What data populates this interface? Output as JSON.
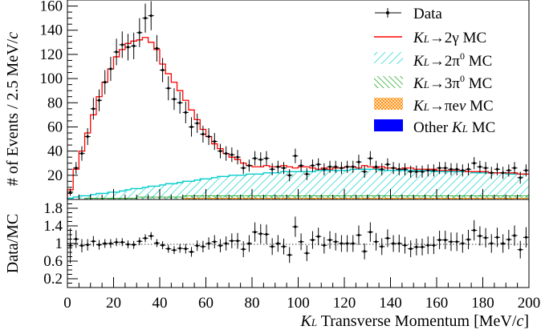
{
  "chart_data": {
    "type": "histogram",
    "xlabel": "KL Transverse Momentum [MeV/c]",
    "xlabel_parts": {
      "k": "K",
      "sub": "L",
      "rest": " Transverse Momentum [MeV/",
      "c": "c",
      "close": "]"
    },
    "ylabel_top": "# of Events / 2.5 MeV/c",
    "ylabel_top_parts": {
      "main": "# of Events / 2.5 MeV/",
      "c": "c"
    },
    "ylabel_bottom": "Data/MC",
    "xlim": [
      0,
      200
    ],
    "ylim_top": [
      0,
      165
    ],
    "ylim_bottom": [
      0,
      2.0
    ],
    "xticks": [
      "0",
      "20",
      "40",
      "60",
      "80",
      "100",
      "120",
      "140",
      "160",
      "180",
      "200"
    ],
    "yticks_top": [
      "20",
      "40",
      "60",
      "80",
      "100",
      "120",
      "140",
      "160"
    ],
    "yticks_bottom": [
      "0.2",
      "0.6",
      "1",
      "1.4",
      "1.8"
    ],
    "legend_placement": "top-right",
    "legend": [
      {
        "key": "data",
        "label": "Data",
        "style": "errorbar"
      },
      {
        "key": "g2",
        "label": "KL→2γ  MC",
        "parts": {
          "k": "K",
          "sub": "L",
          "rest": "→2γ  MC"
        },
        "color": "#ff0000",
        "style": "line"
      },
      {
        "key": "pi2",
        "label": "KL→2π0 MC",
        "parts": {
          "k": "K",
          "sub": "L",
          "rest": "→2π",
          "sup": "0",
          "tail": " MC"
        },
        "color": "#00cccc",
        "style": "hatch"
      },
      {
        "key": "pi3",
        "label": "KL→3π0 MC",
        "parts": {
          "k": "K",
          "sub": "L",
          "rest": "→3π",
          "sup": "0",
          "tail": " MC"
        },
        "color": "#009900",
        "style": "hatch"
      },
      {
        "key": "pienu",
        "label": "KL→πeν  MC",
        "parts": {
          "k": "K",
          "sub": "L",
          "rest": "→πe",
          "it": "ν",
          "tail": "  MC"
        },
        "color": "#ff8800",
        "style": "hatch"
      },
      {
        "key": "other",
        "label": "Other KL MC",
        "parts": {
          "k": "Other ",
          "k2": "K",
          "sub": "L",
          "tail": " MC"
        },
        "color": "#0000ff",
        "style": "fill"
      }
    ],
    "bin_width": 2.5,
    "bin_centers": [
      1.25,
      3.75,
      6.25,
      8.75,
      11.25,
      13.75,
      16.25,
      18.75,
      21.25,
      23.75,
      26.25,
      28.75,
      31.25,
      33.75,
      36.25,
      38.75,
      41.25,
      43.75,
      46.25,
      48.75,
      51.25,
      53.75,
      56.25,
      58.75,
      61.25,
      63.75,
      66.25,
      68.75,
      71.25,
      73.75,
      76.25,
      78.75,
      81.25,
      83.75,
      86.25,
      88.75,
      91.25,
      93.75,
      96.25,
      98.75,
      101.25,
      103.75,
      106.25,
      108.75,
      111.25,
      113.75,
      116.25,
      118.75,
      121.25,
      123.75,
      126.25,
      128.75,
      131.25,
      133.75,
      136.25,
      138.75,
      141.25,
      143.75,
      146.25,
      148.75,
      151.25,
      153.75,
      156.25,
      158.75,
      161.25,
      163.75,
      166.25,
      168.75,
      171.25,
      173.75,
      176.25,
      178.75,
      181.25,
      183.75,
      186.25,
      188.75,
      191.25,
      193.75,
      196.25,
      198.75
    ],
    "mc_total": [
      8,
      25,
      40,
      55,
      70,
      85,
      97,
      108,
      118,
      124,
      129,
      131,
      132,
      134,
      130,
      124,
      112,
      104,
      97,
      90,
      82,
      74,
      66,
      58,
      52,
      46,
      42,
      38,
      35,
      33,
      30,
      28,
      27,
      27,
      28,
      27,
      27,
      28,
      27,
      26,
      27,
      27,
      26,
      25,
      26,
      25,
      26,
      26,
      27,
      27,
      26,
      28,
      27,
      26,
      27,
      26,
      26,
      25,
      26,
      26,
      25,
      25,
      25,
      25,
      24,
      24,
      24,
      24,
      24,
      23,
      23,
      23,
      23,
      22,
      22,
      22,
      22,
      22,
      21,
      21
    ],
    "mc_2pi0": [
      1,
      2,
      3,
      3,
      4,
      5,
      5,
      6,
      6,
      7,
      8,
      9,
      9,
      10,
      11,
      11,
      12,
      13,
      13,
      14,
      15,
      15,
      16,
      17,
      17,
      18,
      19,
      19,
      20,
      20,
      20,
      21,
      21,
      21,
      22,
      22,
      22,
      23,
      23,
      23,
      23,
      23,
      23,
      24,
      24,
      24,
      24,
      24,
      24,
      25,
      25,
      25,
      25,
      25,
      24,
      24,
      24,
      24,
      24,
      24,
      24,
      24,
      24,
      23,
      23,
      23,
      23,
      23,
      23,
      23,
      22,
      22,
      22,
      22,
      22,
      22,
      21,
      21,
      21,
      21
    ],
    "mc_3pi0": [
      0,
      0,
      0,
      1,
      1,
      1,
      1,
      1,
      1,
      1,
      1,
      1,
      2,
      2,
      2,
      2,
      2,
      2,
      2,
      2,
      3,
      3,
      3,
      3,
      3,
      3,
      3,
      3,
      3,
      3,
      3,
      3,
      3,
      3,
      3,
      3,
      3,
      3,
      3,
      3,
      3,
      3,
      3,
      3,
      3,
      3,
      3,
      3,
      3,
      3,
      3,
      3,
      3,
      3,
      3,
      3,
      3,
      3,
      3,
      3,
      3,
      3,
      3,
      3,
      3,
      3,
      3,
      3,
      3,
      3,
      3,
      3,
      3,
      3,
      3,
      3,
      3,
      3,
      3,
      3
    ],
    "mc_pienu": [
      0,
      0,
      0,
      0,
      0,
      0,
      0,
      0,
      0,
      0,
      0,
      0,
      0,
      0,
      0,
      0,
      0,
      0,
      0,
      0,
      1,
      1,
      1,
      1,
      1,
      1,
      1,
      1,
      1,
      1,
      1,
      1,
      1,
      1,
      1,
      1,
      1,
      1,
      1,
      1,
      1,
      1,
      1,
      1,
      1,
      1,
      1,
      1,
      1,
      1,
      1,
      1,
      1,
      1,
      1,
      1,
      1,
      1,
      1,
      1,
      1,
      1,
      1,
      1,
      1,
      1,
      1,
      1,
      1,
      1,
      1,
      1,
      1,
      1,
      1,
      1,
      1,
      1,
      1,
      1
    ],
    "data": [
      6,
      26,
      38,
      52,
      75,
      82,
      97,
      108,
      122,
      128,
      126,
      127,
      138,
      150,
      152,
      125,
      107,
      92,
      83,
      80,
      72,
      60,
      63,
      54,
      52,
      48,
      40,
      38,
      37,
      35,
      26,
      28,
      34,
      33,
      34,
      25,
      27,
      26,
      20,
      36,
      28,
      21,
      28,
      29,
      25,
      27,
      27,
      26,
      27,
      27,
      31,
      23,
      34,
      27,
      25,
      29,
      26,
      25,
      25,
      23,
      23,
      23,
      24,
      24,
      26,
      26,
      25,
      25,
      24,
      25,
      30,
      27,
      26,
      22,
      25,
      22,
      24,
      26,
      18,
      24
    ],
    "data_err": [
      3,
      5,
      6,
      7,
      9,
      9,
      10,
      10,
      11,
      11,
      11,
      11,
      12,
      12,
      12,
      11,
      10,
      10,
      9,
      9,
      9,
      8,
      8,
      7,
      7,
      7,
      6,
      6,
      6,
      6,
      5,
      5,
      6,
      6,
      6,
      5,
      5,
      5,
      5,
      6,
      5,
      5,
      5,
      5,
      5,
      5,
      5,
      5,
      5,
      5,
      6,
      5,
      6,
      5,
      5,
      5,
      5,
      5,
      5,
      5,
      5,
      5,
      5,
      5,
      5,
      5,
      5,
      5,
      5,
      5,
      5,
      5,
      5,
      5,
      5,
      5,
      5,
      5,
      5,
      5
    ],
    "ratio": [
      0.95,
      1.1,
      0.95,
      0.97,
      1.05,
      0.97,
      1.0,
      1.0,
      1.03,
      1.03,
      0.98,
      0.97,
      1.05,
      1.12,
      1.17,
      1.01,
      0.96,
      0.88,
      0.85,
      0.89,
      0.88,
      0.81,
      0.95,
      0.93,
      1.0,
      1.04,
      0.95,
      1.0,
      1.06,
      1.06,
      0.87,
      1.0,
      1.26,
      1.22,
      1.21,
      0.93,
      1.0,
      0.93,
      0.74,
      1.38,
      1.04,
      0.78,
      1.08,
      1.16,
      0.96,
      1.08,
      1.04,
      1.0,
      1.0,
      1.0,
      1.19,
      0.82,
      1.26,
      1.04,
      0.93,
      1.12,
      1.0,
      1.0,
      0.96,
      0.88,
      0.92,
      0.92,
      0.96,
      0.96,
      1.08,
      1.08,
      1.04,
      1.04,
      1.0,
      1.09,
      1.3,
      1.17,
      1.13,
      1.0,
      1.14,
      1.0,
      1.09,
      1.18,
      0.86,
      1.14
    ],
    "ratio_err": [
      0.4,
      0.2,
      0.15,
      0.13,
      0.12,
      0.11,
      0.1,
      0.1,
      0.09,
      0.09,
      0.09,
      0.09,
      0.09,
      0.09,
      0.09,
      0.09,
      0.09,
      0.09,
      0.09,
      0.1,
      0.11,
      0.11,
      0.12,
      0.13,
      0.14,
      0.15,
      0.15,
      0.16,
      0.17,
      0.18,
      0.18,
      0.19,
      0.22,
      0.22,
      0.22,
      0.19,
      0.19,
      0.18,
      0.18,
      0.23,
      0.19,
      0.18,
      0.2,
      0.2,
      0.19,
      0.2,
      0.2,
      0.19,
      0.19,
      0.19,
      0.22,
      0.18,
      0.22,
      0.2,
      0.19,
      0.2,
      0.19,
      0.2,
      0.19,
      0.19,
      0.19,
      0.19,
      0.2,
      0.2,
      0.21,
      0.21,
      0.21,
      0.21,
      0.21,
      0.22,
      0.23,
      0.22,
      0.22,
      0.21,
      0.22,
      0.21,
      0.22,
      0.23,
      0.2,
      0.23
    ]
  }
}
